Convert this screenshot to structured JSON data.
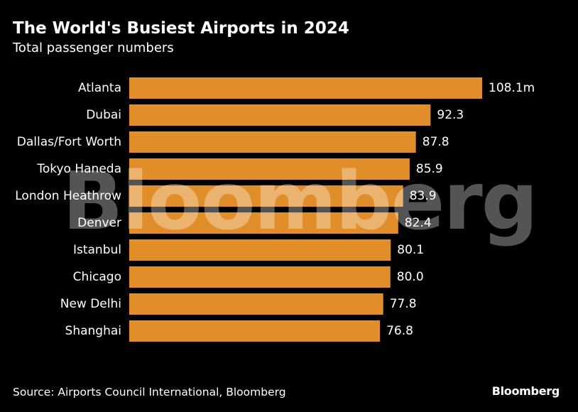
{
  "chart_data": {
    "type": "bar",
    "orientation": "horizontal",
    "title": "The World's Busiest Airports in 2024",
    "subtitle": "Total passenger numbers",
    "categories": [
      "Atlanta",
      "Dubai",
      "Dallas/Fort Worth",
      "Tokyo Haneda",
      "London Heathrow",
      "Denver",
      "Istanbul",
      "Chicago",
      "New Delhi",
      "Shanghai"
    ],
    "values": [
      108.1,
      92.3,
      87.8,
      85.9,
      83.9,
      82.4,
      80.1,
      80.0,
      77.8,
      76.8
    ],
    "value_labels": [
      "108.1m",
      "92.3",
      "87.8",
      "85.9",
      "83.9",
      "82.4",
      "80.1",
      "80.0",
      "77.8",
      "76.8"
    ],
    "xlim": [
      0,
      108.1
    ],
    "unit": "million passengers",
    "bar_color": "#e18e2a",
    "grid": false,
    "legend": "none",
    "xlabel": "",
    "ylabel": ""
  },
  "footer": {
    "source": "Source: Airports Council International, Bloomberg",
    "brand": "Bloomberg"
  },
  "watermark": "Bloomberg",
  "colors": {
    "background": "#000000",
    "text": "#ffffff",
    "bar": "#e18e2a"
  }
}
